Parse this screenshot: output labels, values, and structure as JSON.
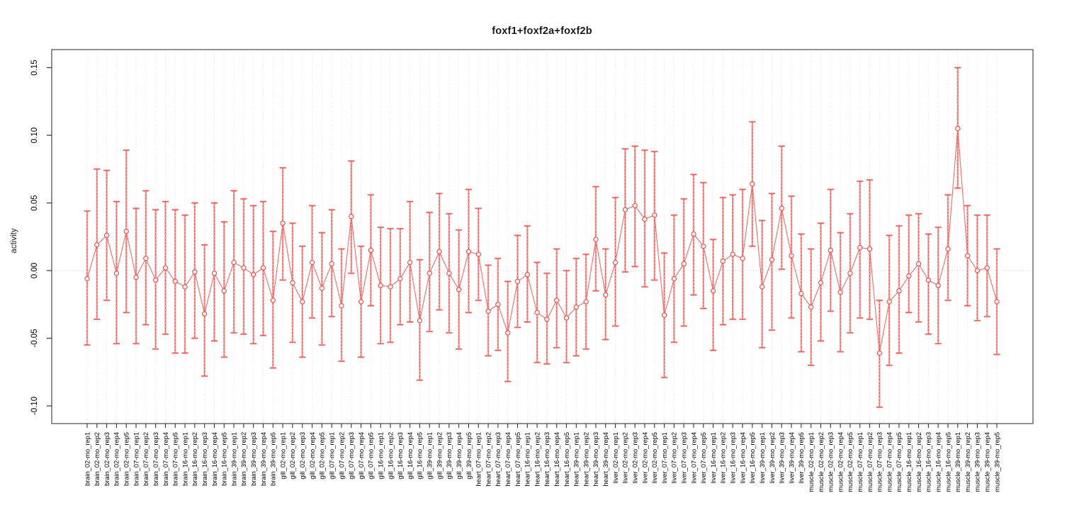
{
  "header": {
    "title": "foxf1+foxf2a+foxf2b"
  },
  "axes": {
    "ylabel": "activity",
    "ytick_labels": [
      "0.15",
      "0.10",
      "0.05",
      "0.00",
      "-0.05",
      "-0.10"
    ],
    "yticks": [
      0.15,
      0.1,
      0.05,
      0.0,
      -0.05,
      -0.1
    ]
  },
  "colors": {
    "errorbar_light": "#f59d9d",
    "errorbar_dark": "#e0514d",
    "point_stroke": "#e0514d",
    "line": "#ef6b66",
    "grid": "#dcdcdc",
    "zero_line": "#c8c8c8",
    "box": "#757575",
    "tick": "#333333",
    "label": "#000000"
  },
  "chart_data": {
    "type": "scatter",
    "subtype": "points-with-error-bars-and-connecting-line",
    "title": "foxf1+foxf2a+foxf2b",
    "xlabel": "",
    "ylabel": "activity",
    "ylim": [
      -0.113,
      0.163
    ],
    "grid": "vertical-dotted-per-category, dotted-horizontal-at-zero",
    "legend": "none",
    "categories": [
      "brain_02-mo_rep1",
      "brain_02-mo_rep2",
      "brain_02-mo_rep3",
      "brain_02-mo_rep4",
      "brain_02-mo_rep5",
      "brain_07-mo_rep1",
      "brain_07-mo_rep2",
      "brain_07-mo_rep3",
      "brain_07-mo_rep4",
      "brain_07-mo_rep5",
      "brain_16-mo_rep1",
      "brain_16-mo_rep2",
      "brain_16-mo_rep3",
      "brain_16-mo_rep4",
      "brain_16-mo_rep5",
      "brain_39-mo_rep1",
      "brain_39-mo_rep2",
      "brain_39-mo_rep3",
      "brain_39-mo_rep4",
      "brain_39-mo_rep5",
      "gill_02-mo_rep1",
      "gill_02-mo_rep2",
      "gill_02-mo_rep3",
      "gill_02-mo_rep4",
      "gill_02-mo_rep5",
      "gill_07-mo_rep1",
      "gill_07-mo_rep2",
      "gill_07-mo_rep3",
      "gill_07-mo_rep4",
      "gill_07-mo_rep5",
      "gill_16-mo_rep1",
      "gill_16-mo_rep2",
      "gill_16-mo_rep3",
      "gill_16-mo_rep4",
      "gill_16-mo_rep5",
      "gill_39-mo_rep1",
      "gill_39-mo_rep2",
      "gill_39-mo_rep3",
      "gill_39-mo_rep4",
      "gill_39-mo_rep5",
      "heart_07-mo_rep1",
      "heart_07-mo_rep2",
      "heart_07-mo_rep3",
      "heart_07-mo_rep4",
      "heart_07-mo_rep5",
      "heart_16-mo_rep1",
      "heart_16-mo_rep2",
      "heart_16-mo_rep3",
      "heart_16-mo_rep4",
      "heart_16-mo_rep5",
      "heart_39-mo_rep1",
      "heart_39-mo_rep2",
      "heart_39-mo_rep3",
      "heart_39-mo_rep4",
      "liver_02-mo_rep1",
      "liver_02-mo_rep2",
      "liver_02-mo_rep3",
      "liver_02-mo_rep4",
      "liver_02-mo_rep5",
      "liver_07-mo_rep1",
      "liver_07-mo_rep2",
      "liver_07-mo_rep3",
      "liver_07-mo_rep4",
      "liver_07-mo_rep5",
      "liver_16-mo_rep1",
      "liver_16-mo_rep2",
      "liver_16-mo_rep3",
      "liver_16-mo_rep4",
      "liver_16-mo_rep5",
      "liver_39-mo_rep1",
      "liver_39-mo_rep2",
      "liver_39-mo_rep3",
      "liver_39-mo_rep4",
      "liver_39-mo_rep5",
      "muscle_02-mo_rep1",
      "muscle_02-mo_rep2",
      "muscle_02-mo_rep3",
      "muscle_02-mo_rep4",
      "muscle_02-mo_rep5",
      "muscle_07-mo_rep1",
      "muscle_07-mo_rep2",
      "muscle_07-mo_rep3",
      "muscle_07-mo_rep4",
      "muscle_07-mo_rep5",
      "muscle_16-mo_rep1",
      "muscle_16-mo_rep2",
      "muscle_16-mo_rep3",
      "muscle_16-mo_rep4",
      "muscle_16-mo_rep5",
      "muscle_39-mo_rep1",
      "muscle_39-mo_rep2",
      "muscle_39-mo_rep3",
      "muscle_39-mo_rep4",
      "muscle_39-mo_rep5"
    ],
    "series": [
      {
        "name": "activity",
        "values": [
          -0.006,
          0.019,
          0.026,
          -0.002,
          0.029,
          -0.005,
          0.009,
          -0.007,
          0.002,
          -0.008,
          -0.012,
          -0.001,
          -0.032,
          -0.002,
          -0.015,
          0.006,
          0.002,
          -0.003,
          0.002,
          -0.022,
          0.035,
          -0.009,
          -0.023,
          0.006,
          -0.013,
          0.005,
          -0.026,
          0.04,
          -0.023,
          0.015,
          -0.011,
          -0.012,
          -0.006,
          0.006,
          -0.037,
          -0.002,
          0.014,
          -0.002,
          -0.014,
          0.014,
          0.012,
          -0.03,
          -0.025,
          -0.046,
          -0.008,
          -0.003,
          -0.031,
          -0.036,
          -0.022,
          -0.035,
          -0.027,
          -0.023,
          0.023,
          -0.018,
          0.006,
          0.045,
          0.048,
          0.038,
          0.041,
          -0.033,
          -0.006,
          0.005,
          0.027,
          0.018,
          -0.015,
          0.007,
          0.012,
          0.009,
          0.064,
          -0.012,
          0.008,
          0.046,
          0.011,
          -0.017,
          -0.027,
          -0.009,
          0.015,
          -0.016,
          -0.002,
          0.017,
          0.016,
          -0.061,
          -0.023,
          -0.015,
          -0.004,
          0.005,
          -0.007,
          -0.011,
          0.016,
          0.105,
          0.011,
          0.0,
          0.002,
          -0.023
        ],
        "lower": [
          -0.055,
          -0.036,
          -0.022,
          -0.054,
          -0.031,
          -0.054,
          -0.04,
          -0.058,
          -0.047,
          -0.061,
          -0.061,
          -0.05,
          -0.078,
          -0.052,
          -0.064,
          -0.046,
          -0.047,
          -0.054,
          -0.048,
          -0.072,
          -0.007,
          -0.053,
          -0.064,
          -0.035,
          -0.055,
          -0.034,
          -0.067,
          -0.002,
          -0.064,
          -0.026,
          -0.054,
          -0.053,
          -0.04,
          -0.038,
          -0.081,
          -0.045,
          -0.029,
          -0.046,
          -0.058,
          -0.031,
          -0.022,
          -0.063,
          -0.059,
          -0.082,
          -0.042,
          -0.038,
          -0.068,
          -0.069,
          -0.057,
          -0.068,
          -0.063,
          -0.058,
          -0.015,
          -0.051,
          -0.041,
          -0.001,
          0.003,
          -0.012,
          -0.007,
          -0.079,
          -0.053,
          -0.041,
          -0.018,
          -0.028,
          -0.059,
          -0.04,
          -0.036,
          -0.036,
          0.018,
          -0.057,
          -0.044,
          0.001,
          -0.035,
          -0.06,
          -0.07,
          -0.052,
          -0.03,
          -0.06,
          -0.046,
          -0.035,
          -0.036,
          -0.101,
          -0.07,
          -0.061,
          -0.031,
          -0.038,
          -0.047,
          -0.054,
          -0.022,
          0.061,
          -0.026,
          -0.037,
          -0.034,
          -0.062
        ],
        "upper": [
          0.044,
          0.075,
          0.074,
          0.051,
          0.089,
          0.046,
          0.059,
          0.045,
          0.051,
          0.045,
          0.041,
          0.05,
          0.019,
          0.05,
          0.036,
          0.059,
          0.053,
          0.048,
          0.051,
          0.029,
          0.076,
          0.035,
          0.018,
          0.048,
          0.028,
          0.045,
          0.016,
          0.081,
          0.018,
          0.056,
          0.032,
          0.031,
          0.031,
          0.051,
          0.008,
          0.043,
          0.057,
          0.042,
          0.03,
          0.06,
          0.046,
          0.004,
          0.009,
          -0.008,
          0.026,
          0.033,
          0.006,
          -0.002,
          0.016,
          0.0,
          0.009,
          0.012,
          0.062,
          0.016,
          0.054,
          0.09,
          0.092,
          0.089,
          0.088,
          0.013,
          0.041,
          0.053,
          0.071,
          0.065,
          0.023,
          0.054,
          0.056,
          0.06,
          0.11,
          0.037,
          0.057,
          0.092,
          0.055,
          0.027,
          0.016,
          0.035,
          0.06,
          0.028,
          0.042,
          0.066,
          0.067,
          -0.022,
          0.026,
          0.033,
          0.041,
          0.042,
          0.027,
          0.032,
          0.056,
          0.15,
          0.048,
          0.041,
          0.041,
          0.016
        ]
      }
    ]
  }
}
